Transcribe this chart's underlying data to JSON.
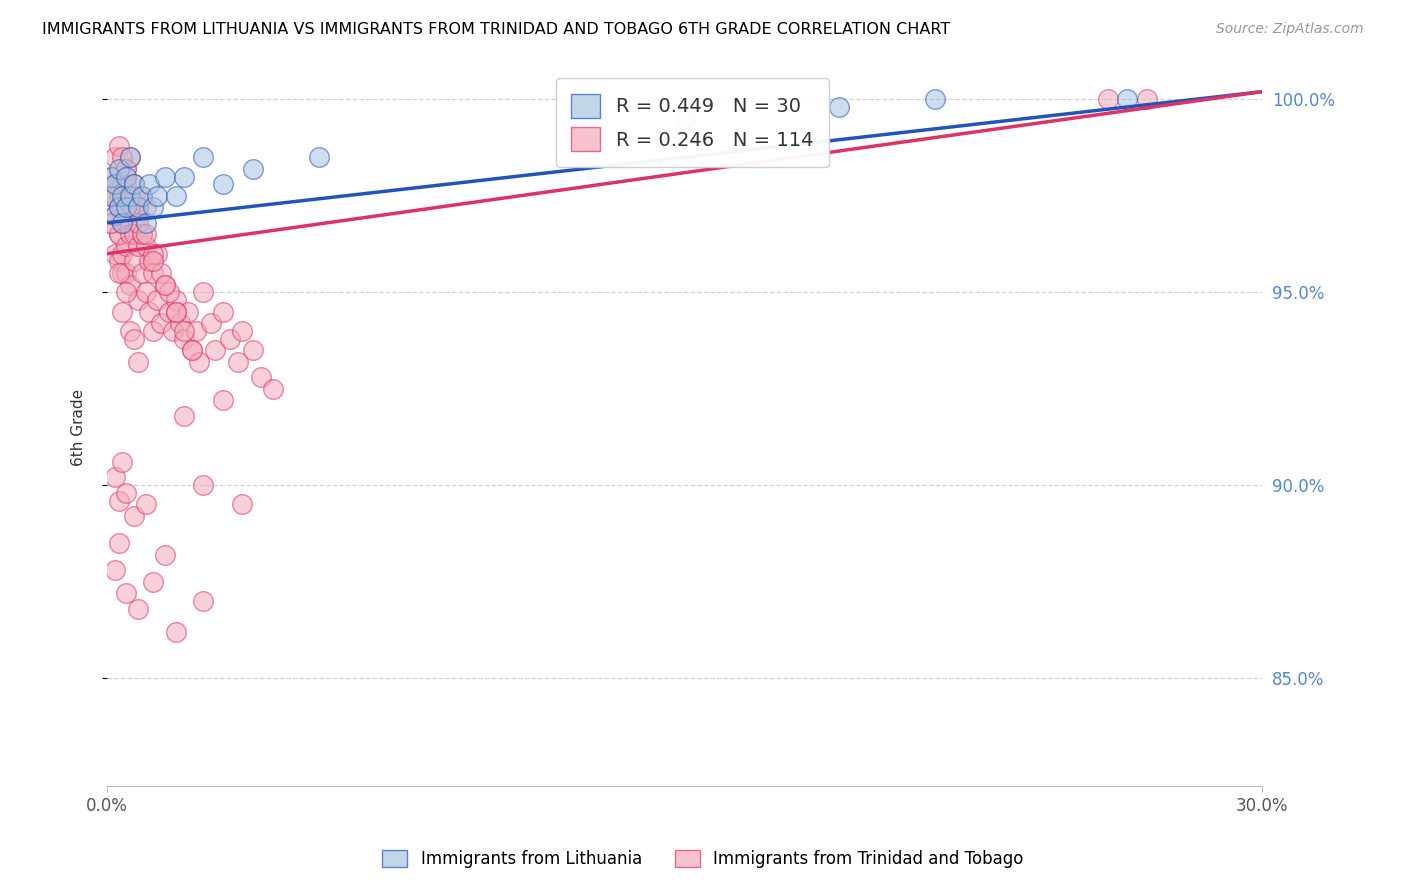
{
  "title": "IMMIGRANTS FROM LITHUANIA VS IMMIGRANTS FROM TRINIDAD AND TOBAGO 6TH GRADE CORRELATION CHART",
  "source": "Source: ZipAtlas.com",
  "ylabel": "6th Grade",
  "legend_label_blue": "Immigrants from Lithuania",
  "legend_label_pink": "Immigrants from Trinidad and Tobago",
  "R_blue": 0.449,
  "N_blue": 30,
  "R_pink": 0.246,
  "N_pink": 114,
  "blue_color": "#A8C4E0",
  "pink_color": "#F4AABB",
  "trend_blue": "#2255BB",
  "trend_pink": "#DD3366",
  "xmin": 0.0,
  "xmax": 0.3,
  "ymin": 0.822,
  "ymax": 1.008,
  "blue_trend_x0": 0.0,
  "blue_trend_y0": 0.968,
  "blue_trend_x1": 0.3,
  "blue_trend_y1": 1.002,
  "pink_trend_x0": 0.0,
  "pink_trend_y0": 0.96,
  "pink_trend_x1": 0.3,
  "pink_trend_y1": 1.002,
  "blue_x": [
    0.001,
    0.001,
    0.002,
    0.002,
    0.003,
    0.003,
    0.004,
    0.004,
    0.005,
    0.005,
    0.006,
    0.006,
    0.007,
    0.008,
    0.009,
    0.01,
    0.011,
    0.012,
    0.013,
    0.015,
    0.018,
    0.02,
    0.025,
    0.03,
    0.038,
    0.055,
    0.15,
    0.19,
    0.215,
    0.265
  ],
  "blue_y": [
    0.975,
    0.98,
    0.97,
    0.978,
    0.972,
    0.982,
    0.975,
    0.968,
    0.98,
    0.972,
    0.975,
    0.985,
    0.978,
    0.972,
    0.975,
    0.968,
    0.978,
    0.972,
    0.975,
    0.98,
    0.975,
    0.98,
    0.985,
    0.978,
    0.982,
    0.985,
    0.995,
    0.998,
    1.0,
    1.0
  ],
  "pink_x": [
    0.001,
    0.001,
    0.001,
    0.002,
    0.002,
    0.002,
    0.002,
    0.003,
    0.003,
    0.003,
    0.003,
    0.003,
    0.004,
    0.004,
    0.004,
    0.004,
    0.005,
    0.005,
    0.005,
    0.005,
    0.005,
    0.006,
    0.006,
    0.006,
    0.007,
    0.007,
    0.007,
    0.008,
    0.008,
    0.009,
    0.009,
    0.01,
    0.01,
    0.011,
    0.011,
    0.012,
    0.012,
    0.013,
    0.013,
    0.014,
    0.015,
    0.016,
    0.017,
    0.018,
    0.019,
    0.02,
    0.021,
    0.022,
    0.023,
    0.024,
    0.025,
    0.027,
    0.028,
    0.03,
    0.032,
    0.034,
    0.035,
    0.038,
    0.04,
    0.043,
    0.003,
    0.004,
    0.005,
    0.006,
    0.006,
    0.007,
    0.008,
    0.009,
    0.01,
    0.012,
    0.014,
    0.016,
    0.018,
    0.003,
    0.004,
    0.005,
    0.006,
    0.007,
    0.008,
    0.009,
    0.01,
    0.012,
    0.015,
    0.018,
    0.02,
    0.022,
    0.001,
    0.002,
    0.003,
    0.004,
    0.005,
    0.006,
    0.007,
    0.008,
    0.003,
    0.005,
    0.007,
    0.02,
    0.03,
    0.002,
    0.004,
    0.01,
    0.015,
    0.025,
    0.035,
    0.002,
    0.003,
    0.005,
    0.008,
    0.012,
    0.018,
    0.025,
    0.26,
    0.27
  ],
  "pink_y": [
    0.975,
    0.968,
    0.98,
    0.97,
    0.978,
    0.96,
    0.985,
    0.965,
    0.972,
    0.958,
    0.978,
    0.965,
    0.96,
    0.972,
    0.955,
    0.968,
    0.975,
    0.962,
    0.955,
    0.968,
    0.978,
    0.952,
    0.965,
    0.972,
    0.958,
    0.965,
    0.972,
    0.948,
    0.962,
    0.955,
    0.965,
    0.95,
    0.962,
    0.945,
    0.958,
    0.94,
    0.955,
    0.948,
    0.96,
    0.942,
    0.952,
    0.945,
    0.94,
    0.948,
    0.942,
    0.938,
    0.945,
    0.935,
    0.94,
    0.932,
    0.95,
    0.942,
    0.935,
    0.945,
    0.938,
    0.932,
    0.94,
    0.935,
    0.928,
    0.925,
    0.975,
    0.978,
    0.982,
    0.972,
    0.985,
    0.975,
    0.97,
    0.965,
    0.972,
    0.96,
    0.955,
    0.95,
    0.945,
    0.988,
    0.985,
    0.982,
    0.972,
    0.978,
    0.968,
    0.975,
    0.965,
    0.958,
    0.952,
    0.945,
    0.94,
    0.935,
    0.968,
    0.975,
    0.955,
    0.945,
    0.95,
    0.94,
    0.938,
    0.932,
    0.896,
    0.898,
    0.892,
    0.918,
    0.922,
    0.902,
    0.906,
    0.895,
    0.882,
    0.9,
    0.895,
    0.878,
    0.885,
    0.872,
    0.868,
    0.875,
    0.862,
    0.87,
    1.0,
    1.0
  ]
}
